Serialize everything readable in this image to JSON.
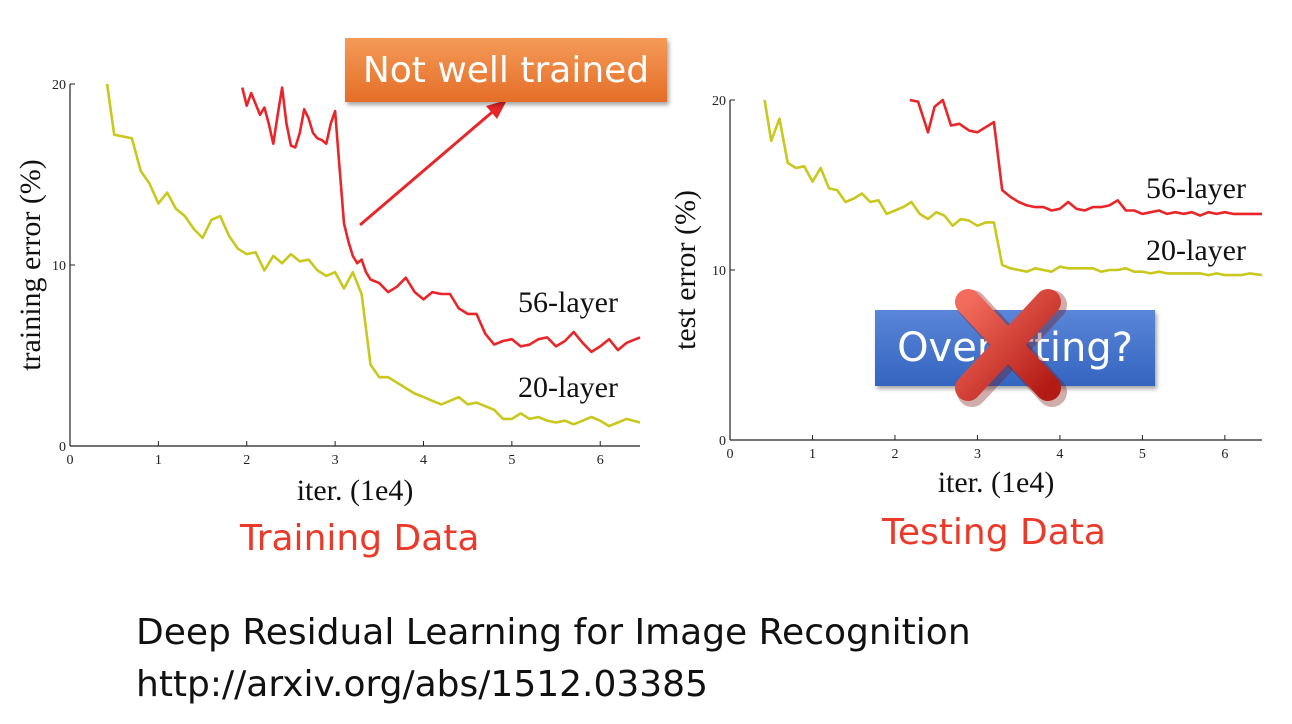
{
  "charts": [
    {
      "type": "line",
      "ylabel": "training error (%)",
      "xlabel": "iter. (1e4)",
      "xlim": [
        0,
        6.45
      ],
      "ylim": [
        0,
        20
      ],
      "xticks": [
        "0",
        "1",
        "2",
        "3",
        "4",
        "5",
        "6"
      ],
      "yticks": [
        "0",
        "10",
        "20"
      ],
      "caption": "Training Data",
      "series": [
        {
          "name": "56-layer",
          "color": "#e8262a",
          "x": [
            1.95,
            2.0,
            2.05,
            2.1,
            2.15,
            2.2,
            2.25,
            2.3,
            2.35,
            2.4,
            2.45,
            2.5,
            2.55,
            2.6,
            2.65,
            2.7,
            2.75,
            2.8,
            2.85,
            2.9,
            2.95,
            3.0,
            3.05,
            3.1,
            3.15,
            3.2,
            3.25,
            3.3,
            3.35,
            3.4,
            3.5,
            3.6,
            3.7,
            3.8,
            3.9,
            4.0,
            4.1,
            4.2,
            4.3,
            4.4,
            4.5,
            4.6,
            4.7,
            4.8,
            4.9,
            5.0,
            5.1,
            5.2,
            5.3,
            5.4,
            5.5,
            5.6,
            5.7,
            5.8,
            5.9,
            6.0,
            6.1,
            6.2,
            6.3,
            6.45
          ],
          "y": [
            19.8,
            18.8,
            19.5,
            18.9,
            18.3,
            18.7,
            17.8,
            16.7,
            18.3,
            19.8,
            17.8,
            16.6,
            16.5,
            17.3,
            18.6,
            18.1,
            17.3,
            17.0,
            16.9,
            16.7,
            17.8,
            18.5,
            15.4,
            12.3,
            11.3,
            10.5,
            10.1,
            10.3,
            9.6,
            9.2,
            9.0,
            8.5,
            8.8,
            9.3,
            8.5,
            8.1,
            8.5,
            8.4,
            8.4,
            7.6,
            7.3,
            7.3,
            6.2,
            5.6,
            5.8,
            5.9,
            5.5,
            5.6,
            5.9,
            6.0,
            5.5,
            5.8,
            6.3,
            5.7,
            5.2,
            5.5,
            5.9,
            5.3,
            5.7,
            6.0
          ]
        },
        {
          "name": "20-layer",
          "color": "#c8c81e",
          "x": [
            0.42,
            0.5,
            0.6,
            0.7,
            0.8,
            0.9,
            1.0,
            1.1,
            1.2,
            1.3,
            1.4,
            1.5,
            1.6,
            1.7,
            1.8,
            1.9,
            2.0,
            2.1,
            2.2,
            2.3,
            2.4,
            2.5,
            2.6,
            2.7,
            2.8,
            2.9,
            3.0,
            3.1,
            3.2,
            3.3,
            3.4,
            3.5,
            3.6,
            3.7,
            3.8,
            3.9,
            4.0,
            4.1,
            4.2,
            4.3,
            4.4,
            4.5,
            4.6,
            4.7,
            4.8,
            4.9,
            5.0,
            5.1,
            5.2,
            5.3,
            5.4,
            5.5,
            5.6,
            5.7,
            5.8,
            5.9,
            6.0,
            6.1,
            6.2,
            6.3,
            6.45
          ],
          "y": [
            20.0,
            17.2,
            17.1,
            17.0,
            15.2,
            14.5,
            13.4,
            14.0,
            13.1,
            12.7,
            12.0,
            11.5,
            12.5,
            12.7,
            11.6,
            10.9,
            10.6,
            10.7,
            9.7,
            10.5,
            10.1,
            10.6,
            10.2,
            10.3,
            9.7,
            9.4,
            9.6,
            8.7,
            9.6,
            8.4,
            4.5,
            3.8,
            3.8,
            3.5,
            3.2,
            2.9,
            2.7,
            2.5,
            2.3,
            2.5,
            2.7,
            2.3,
            2.4,
            2.2,
            2.0,
            1.5,
            1.5,
            1.8,
            1.5,
            1.6,
            1.4,
            1.3,
            1.4,
            1.2,
            1.4,
            1.6,
            1.4,
            1.1,
            1.3,
            1.5,
            1.3
          ]
        }
      ]
    },
    {
      "type": "line",
      "ylabel": "test error (%)",
      "xlabel": "iter. (1e4)",
      "xlim": [
        0,
        6.45
      ],
      "ylim": [
        0,
        20
      ],
      "xticks": [
        "0",
        "1",
        "2",
        "3",
        "4",
        "5",
        "6"
      ],
      "yticks": [
        "0",
        "10",
        "20"
      ],
      "caption": "Testing Data",
      "series": [
        {
          "name": "56-layer",
          "color": "#e8262a",
          "x": [
            2.18,
            2.28,
            2.4,
            2.48,
            2.58,
            2.68,
            2.78,
            2.9,
            3.0,
            3.1,
            3.2,
            3.3,
            3.4,
            3.5,
            3.6,
            3.7,
            3.8,
            3.9,
            4.0,
            4.1,
            4.2,
            4.3,
            4.4,
            4.5,
            4.6,
            4.7,
            4.8,
            4.9,
            5.0,
            5.1,
            5.2,
            5.3,
            5.4,
            5.5,
            5.6,
            5.7,
            5.8,
            5.9,
            6.0,
            6.1,
            6.2,
            6.3,
            6.45
          ],
          "y": [
            20.0,
            19.9,
            18.1,
            19.6,
            20.0,
            18.5,
            18.6,
            18.2,
            18.1,
            18.4,
            18.7,
            14.7,
            14.3,
            14.0,
            13.8,
            13.7,
            13.7,
            13.5,
            13.6,
            14.0,
            13.6,
            13.5,
            13.7,
            13.7,
            13.8,
            14.1,
            13.5,
            13.5,
            13.3,
            13.4,
            13.5,
            13.3,
            13.4,
            13.3,
            13.4,
            13.2,
            13.4,
            13.3,
            13.4,
            13.3,
            13.3,
            13.3,
            13.3
          ]
        },
        {
          "name": "20-layer",
          "color": "#c8c81e",
          "x": [
            0.42,
            0.5,
            0.6,
            0.7,
            0.8,
            0.9,
            1.0,
            1.1,
            1.2,
            1.3,
            1.4,
            1.5,
            1.6,
            1.7,
            1.8,
            1.9,
            2.0,
            2.1,
            2.2,
            2.3,
            2.4,
            2.5,
            2.6,
            2.7,
            2.8,
            2.9,
            3.0,
            3.1,
            3.2,
            3.3,
            3.4,
            3.5,
            3.6,
            3.7,
            3.8,
            3.9,
            4.0,
            4.1,
            4.2,
            4.3,
            4.4,
            4.5,
            4.6,
            4.7,
            4.8,
            4.9,
            5.0,
            5.1,
            5.2,
            5.3,
            5.4,
            5.5,
            5.6,
            5.7,
            5.8,
            5.9,
            6.0,
            6.1,
            6.2,
            6.3,
            6.45
          ],
          "y": [
            20.0,
            17.6,
            18.9,
            16.3,
            16.0,
            16.1,
            15.2,
            16.0,
            14.8,
            14.7,
            14.0,
            14.2,
            14.5,
            14.0,
            14.1,
            13.3,
            13.5,
            13.7,
            14.0,
            13.3,
            13.0,
            13.4,
            13.2,
            12.6,
            13.0,
            12.9,
            12.6,
            12.8,
            12.8,
            10.3,
            10.1,
            10.0,
            9.9,
            10.1,
            10.0,
            9.9,
            10.2,
            10.1,
            10.1,
            10.1,
            10.1,
            9.9,
            10.0,
            10.0,
            10.1,
            9.9,
            9.9,
            9.8,
            9.9,
            9.8,
            9.8,
            9.8,
            9.8,
            9.8,
            9.7,
            9.8,
            9.7,
            9.7,
            9.7,
            9.8,
            9.7
          ]
        }
      ]
    }
  ],
  "annotations": {
    "not_well_trained": "Not well trained",
    "overfitting": "Overfitting?",
    "arrow_color": "#e8262a",
    "cross_color": "#d42a22"
  },
  "reference": {
    "title": "Deep Residual Learning for Image Recognition",
    "url": "http://arxiv.org/abs/1512.03385"
  }
}
